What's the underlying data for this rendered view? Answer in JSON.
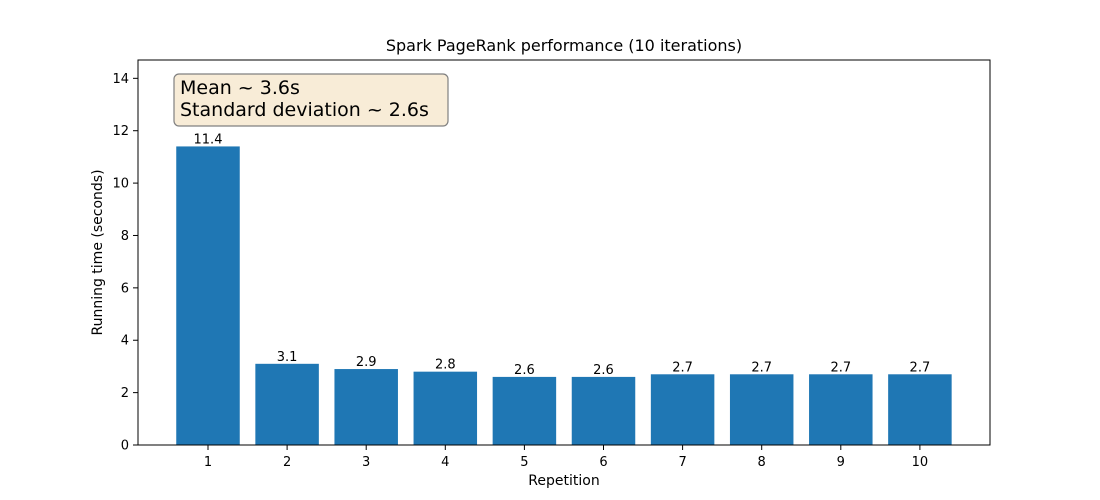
{
  "chart_data": {
    "type": "bar",
    "title": "Spark PageRank performance (10 iterations)",
    "xlabel": "Repetition",
    "ylabel": "Running time (seconds)",
    "categories": [
      "1",
      "2",
      "3",
      "4",
      "5",
      "6",
      "7",
      "8",
      "9",
      "10"
    ],
    "values": [
      11.4,
      3.1,
      2.9,
      2.8,
      2.6,
      2.6,
      2.7,
      2.7,
      2.7,
      2.7
    ],
    "data_labels": [
      "11.4",
      "3.1",
      "2.9",
      "2.8",
      "2.6",
      "2.6",
      "2.7",
      "2.7",
      "2.7",
      "2.7"
    ],
    "ylim": [
      0,
      14.7
    ],
    "yticks": [
      0,
      2,
      4,
      6,
      8,
      10,
      12,
      14
    ],
    "grid": false,
    "bar_color": "#1f77b4",
    "annotation": {
      "lines": [
        "Mean ~ 3.6s",
        "Standard deviation ~ 2.6s"
      ],
      "placement": "top-left",
      "background": "#f8ecd7",
      "border": "#808080"
    }
  }
}
